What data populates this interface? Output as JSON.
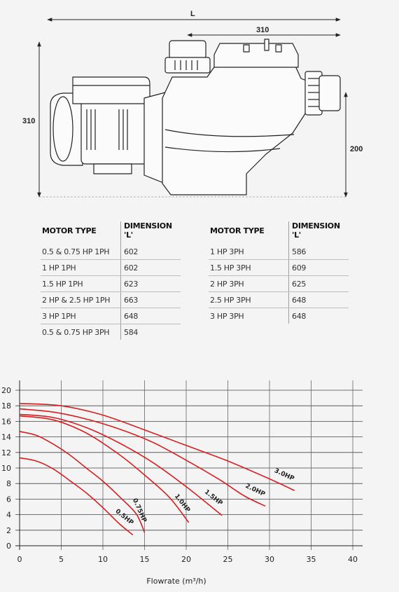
{
  "dimensions": {
    "overall_length_label": "L",
    "pump_width_label": "310",
    "height_label": "310",
    "inlet_height_label": "200"
  },
  "tables": [
    {
      "headers": [
        "MOTOR TYPE",
        "DIMENSION 'L'"
      ],
      "rows": [
        [
          "0.5 & 0.75 HP 1PH",
          "602"
        ],
        [
          "1 HP 1PH",
          "602"
        ],
        [
          "1.5 HP 1PH",
          "623"
        ],
        [
          "2 HP & 2.5 HP 1PH",
          "663"
        ],
        [
          "3 HP 1PH",
          "648"
        ],
        [
          "0.5 & 0.75 HP 3PH",
          "584"
        ]
      ]
    },
    {
      "headers": [
        "MOTOR TYPE",
        "DIMENSION 'L'"
      ],
      "rows": [
        [
          "1 HP 3PH",
          "586"
        ],
        [
          "1.5 HP 3PH",
          "609"
        ],
        [
          "2 HP 3PH",
          "625"
        ],
        [
          "2.5 HP 3PH",
          "648"
        ],
        [
          "3 HP 3PH",
          "648"
        ]
      ]
    }
  ],
  "chart_data": {
    "type": "line",
    "xlabel": "Flowrate (m³/h)",
    "ylabel": "",
    "xlim": [
      0,
      40
    ],
    "ylim": [
      0,
      20
    ],
    "xticks": [
      0,
      5,
      10,
      15,
      20,
      25,
      30,
      35,
      40
    ],
    "yticks": [
      0,
      2,
      4,
      6,
      8,
      10,
      12,
      14,
      16,
      18,
      20
    ],
    "grid": true,
    "line_color": "#d42020",
    "series": [
      {
        "name": "0.5HP",
        "x": [
          0,
          2,
          4,
          6,
          8,
          10,
          12,
          13.6
        ],
        "y": [
          11.3,
          10.9,
          9.9,
          8.4,
          6.8,
          4.9,
          2.8,
          1.4
        ]
      },
      {
        "name": "0.75HP",
        "x": [
          0,
          2,
          4,
          6,
          8,
          10,
          12,
          14,
          15
        ],
        "y": [
          14.7,
          14.2,
          13.1,
          11.7,
          10.0,
          8.3,
          6.3,
          4.1,
          1.7
        ]
      },
      {
        "name": "1.0HP",
        "x": [
          0,
          4,
          8,
          12,
          15,
          18,
          20.3
        ],
        "y": [
          16.7,
          16.2,
          14.5,
          11.7,
          9.1,
          6.2,
          3.0
        ]
      },
      {
        "name": "1.5HP",
        "x": [
          0,
          4,
          8,
          12,
          16,
          20,
          24.3
        ],
        "y": [
          16.9,
          16.5,
          15.2,
          13.2,
          10.7,
          7.6,
          3.9
        ]
      },
      {
        "name": "2.0HP",
        "x": [
          0,
          4,
          8,
          12,
          16,
          20,
          24,
          27,
          29.5
        ],
        "y": [
          17.6,
          17.2,
          16.3,
          15.0,
          13.3,
          11.0,
          8.5,
          6.4,
          5.1
        ]
      },
      {
        "name": "3.0HP",
        "x": [
          0,
          5,
          10,
          15,
          20,
          25,
          30,
          33
        ],
        "y": [
          18.3,
          18.0,
          16.8,
          14.9,
          12.9,
          10.9,
          8.6,
          7.1
        ]
      }
    ]
  }
}
